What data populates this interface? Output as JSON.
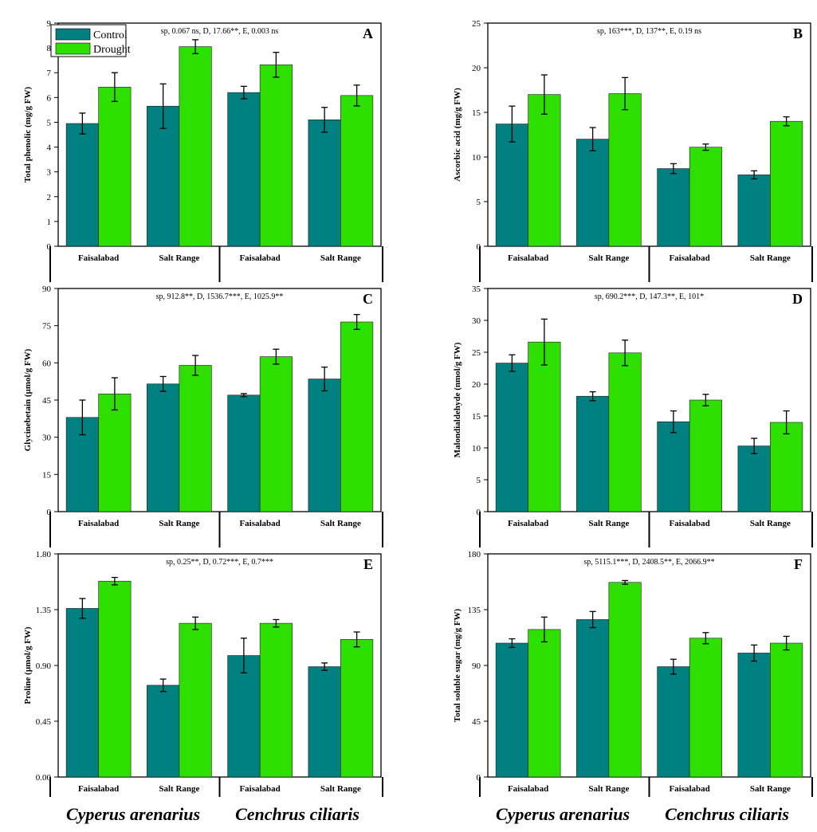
{
  "colors": {
    "control": "#008080",
    "drought": "#2EE000"
  },
  "legend": {
    "control_label": "Control",
    "drought_label": "Drought"
  },
  "species": [
    "Cyperus arenarius",
    "Cenchrus ciliaris"
  ],
  "chart_data": [
    {
      "type": "bar",
      "letter": "A",
      "ylabel": "Total phenolic (mg/g FW)",
      "annotation": "sp, 0.067 ns, D, 17.66**, E, 0.003 ns",
      "ylim": [
        0,
        9
      ],
      "ticks": [
        "0",
        "1",
        "2",
        "3",
        "4",
        "5",
        "6",
        "7",
        "8",
        "9"
      ],
      "categories": [
        "Faisalabad",
        "Salt Range",
        "Faisalabad",
        "Salt Range"
      ],
      "series": [
        {
          "name": "Control",
          "values": [
            4.95,
            5.65,
            6.2,
            5.1
          ],
          "errors": [
            0.42,
            0.9,
            0.25,
            0.5
          ]
        },
        {
          "name": "Drought",
          "values": [
            6.42,
            8.05,
            7.32,
            6.08
          ],
          "errors": [
            0.58,
            0.28,
            0.5,
            0.42
          ]
        }
      ]
    },
    {
      "type": "bar",
      "letter": "B",
      "ylabel": "Ascorbic acid (mg/g FW)",
      "annotation": "sp, 163***, D, 137**, E, 0.19 ns",
      "ylim": [
        0,
        25
      ],
      "ticks": [
        "0",
        "5",
        "10",
        "15",
        "20",
        "25"
      ],
      "categories": [
        "Faisalabad",
        "Salt Range",
        "Faisalabad",
        "Salt Range"
      ],
      "series": [
        {
          "name": "Control",
          "values": [
            13.7,
            12.0,
            8.7,
            8.0
          ],
          "errors": [
            2.0,
            1.3,
            0.55,
            0.45
          ]
        },
        {
          "name": "Drought",
          "values": [
            17.0,
            17.1,
            11.1,
            14.0
          ],
          "errors": [
            2.2,
            1.8,
            0.35,
            0.5
          ]
        }
      ]
    },
    {
      "type": "bar",
      "letter": "C",
      "ylabel": "Glycinebetain (µmol/g FW)",
      "annotation": "sp, 912.8**, D, 1536.7***, E, 1025.9**",
      "ylim": [
        0,
        90
      ],
      "ticks": [
        "0",
        "15",
        "30",
        "45",
        "60",
        "75",
        "90"
      ],
      "categories": [
        "Faisalabad",
        "Salt Range",
        "Faisalabad",
        "Salt Range"
      ],
      "series": [
        {
          "name": "Control",
          "values": [
            38.0,
            51.5,
            47.0,
            53.5
          ],
          "errors": [
            7.0,
            3.0,
            0.6,
            4.8
          ]
        },
        {
          "name": "Drought",
          "values": [
            47.5,
            59.0,
            62.5,
            76.5
          ],
          "errors": [
            6.5,
            4.0,
            3.0,
            3.0
          ]
        }
      ]
    },
    {
      "type": "bar",
      "letter": "D",
      "ylabel": "Malondialdehyde (nmol/g FW)",
      "annotation": "sp, 690.2***, D, 147.3**, E, 101*",
      "ylim": [
        0,
        35
      ],
      "ticks": [
        "0",
        "5",
        "10",
        "15",
        "20",
        "25",
        "30",
        "35"
      ],
      "categories": [
        "Faisalabad",
        "Salt Range",
        "Faisalabad",
        "Salt Range"
      ],
      "series": [
        {
          "name": "Control",
          "values": [
            23.3,
            18.1,
            14.1,
            10.3
          ],
          "errors": [
            1.3,
            0.7,
            1.7,
            1.2
          ]
        },
        {
          "name": "Drought",
          "values": [
            26.6,
            24.9,
            17.5,
            14.0
          ],
          "errors": [
            3.6,
            2.0,
            0.9,
            1.8
          ]
        }
      ]
    },
    {
      "type": "bar",
      "letter": "E",
      "ylabel": "Proline (µmol/g FW)",
      "annotation": "sp, 0.25**, D, 0.72***, E, 0.7***",
      "ylim": [
        0,
        1.8
      ],
      "ticks": [
        "0.00",
        "0.45",
        "0.90",
        "1.35",
        "1.80"
      ],
      "categories": [
        "Faisalabad",
        "Salt Range",
        "Faisalabad",
        "Salt Range"
      ],
      "series": [
        {
          "name": "Control",
          "values": [
            1.36,
            0.74,
            0.98,
            0.89
          ],
          "errors": [
            0.08,
            0.05,
            0.14,
            0.03
          ]
        },
        {
          "name": "Drought",
          "values": [
            1.58,
            1.24,
            1.24,
            1.11
          ],
          "errors": [
            0.03,
            0.05,
            0.03,
            0.06
          ]
        }
      ]
    },
    {
      "type": "bar",
      "letter": "F",
      "ylabel": "Total soluble sugar (mg/g FW)",
      "annotation": "sp, 5115.1***, D, 2408.5**, E, 2066.9**",
      "ylim": [
        0,
        180
      ],
      "ticks": [
        "0",
        "45",
        "90",
        "135",
        "180"
      ],
      "categories": [
        "Faisalabad",
        "Salt Range",
        "Faisalabad",
        "Salt Range"
      ],
      "series": [
        {
          "name": "Control",
          "values": [
            108,
            127,
            89,
            100
          ],
          "errors": [
            3.5,
            6.5,
            6.0,
            6.5
          ]
        },
        {
          "name": "Drought",
          "values": [
            119,
            157,
            112,
            108
          ],
          "errors": [
            10.0,
            1.5,
            4.5,
            5.5
          ]
        }
      ]
    }
  ]
}
